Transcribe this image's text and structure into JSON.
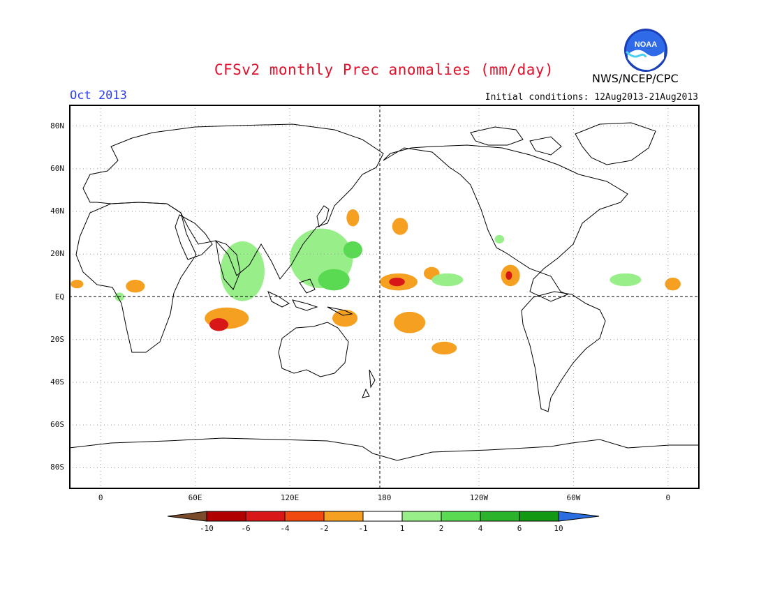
{
  "header": {
    "title": "CFSv2 monthly Prec anomalies (mm/day)",
    "month": "Oct 2013",
    "initial_conditions": "Initial conditions: 12Aug2013-21Aug2013",
    "agency": "NWS/NCEP/CPC",
    "logo_text": "NOAA"
  },
  "axes": {
    "lat_labels": [
      "80N",
      "60N",
      "40N",
      "20N",
      "EQ",
      "20S",
      "40S",
      "60S",
      "80S"
    ],
    "lat_values": [
      80,
      60,
      40,
      20,
      0,
      -20,
      -40,
      -60,
      -80
    ],
    "lon_labels": [
      "0",
      "60E",
      "120E",
      "180",
      "120W",
      "60W",
      "0"
    ],
    "lon_values": [
      0,
      60,
      120,
      180,
      240,
      300,
      360
    ],
    "lon_range": [
      -20,
      380
    ],
    "lat_range": [
      -90,
      90
    ]
  },
  "legend": {
    "labels": [
      "-10",
      "-6",
      "-4",
      "-2",
      "-1",
      "1",
      "2",
      "4",
      "6",
      "10"
    ],
    "colors": [
      "#7a4a2a",
      "#b00000",
      "#d81818",
      "#f04a10",
      "#f5a020",
      "#ffffff",
      "#98ee88",
      "#5ada52",
      "#2bb42b",
      "#129812",
      "#2a6ee0"
    ]
  },
  "colors": {
    "title": "#e0102a",
    "month": "#2a3cf0",
    "dry_light": "#f5a020",
    "dry_med": "#f04a10",
    "dry_strong": "#d81818",
    "wet_light": "#98ee88",
    "wet_med": "#5ada52"
  },
  "anomaly_regions": [
    {
      "lon": 80,
      "lat": -10,
      "rx": 14,
      "ry": 5,
      "level": -2
    },
    {
      "lon": 75,
      "lat": -13,
      "rx": 6,
      "ry": 3,
      "level": -4
    },
    {
      "lon": 155,
      "lat": -10,
      "rx": 8,
      "ry": 4,
      "level": -2
    },
    {
      "lon": 189,
      "lat": 7,
      "rx": 12,
      "ry": 4,
      "level": -2
    },
    {
      "lon": 188,
      "lat": 7,
      "rx": 5,
      "ry": 2,
      "level": -4
    },
    {
      "lon": 196,
      "lat": -12,
      "rx": 10,
      "ry": 5,
      "level": -2
    },
    {
      "lon": 190,
      "lat": 33,
      "rx": 5,
      "ry": 4,
      "level": -2
    },
    {
      "lon": 210,
      "lat": 11,
      "rx": 5,
      "ry": 3,
      "level": -2
    },
    {
      "lon": 218,
      "lat": -24,
      "rx": 8,
      "ry": 3,
      "level": -2
    },
    {
      "lon": 260,
      "lat": 10,
      "rx": 6,
      "ry": 5,
      "level": -2
    },
    {
      "lon": 259,
      "lat": 10,
      "rx": 2,
      "ry": 2,
      "level": -4
    },
    {
      "lon": 22,
      "lat": 5,
      "rx": 6,
      "ry": 3,
      "level": -2
    },
    {
      "lon": -15,
      "lat": 6,
      "rx": 4,
      "ry": 2,
      "level": -2
    },
    {
      "lon": 363,
      "lat": 6,
      "rx": 5,
      "ry": 3,
      "level": -2
    },
    {
      "lon": 160,
      "lat": 37,
      "rx": 4,
      "ry": 4,
      "level": -2
    },
    {
      "lon": 90,
      "lat": 12,
      "rx": 14,
      "ry": 14,
      "level": 1
    },
    {
      "lon": 140,
      "lat": 18,
      "rx": 20,
      "ry": 14,
      "level": 1
    },
    {
      "lon": 148,
      "lat": 8,
      "rx": 10,
      "ry": 5,
      "level": 2
    },
    {
      "lon": 160,
      "lat": 22,
      "rx": 6,
      "ry": 4,
      "level": 2
    },
    {
      "lon": 220,
      "lat": 8,
      "rx": 10,
      "ry": 3,
      "level": 1
    },
    {
      "lon": 333,
      "lat": 8,
      "rx": 10,
      "ry": 3,
      "level": 1
    },
    {
      "lon": 12,
      "lat": 0,
      "rx": 3,
      "ry": 2,
      "level": 1
    },
    {
      "lon": 253,
      "lat": 27,
      "rx": 3,
      "ry": 2,
      "level": 1
    }
  ]
}
